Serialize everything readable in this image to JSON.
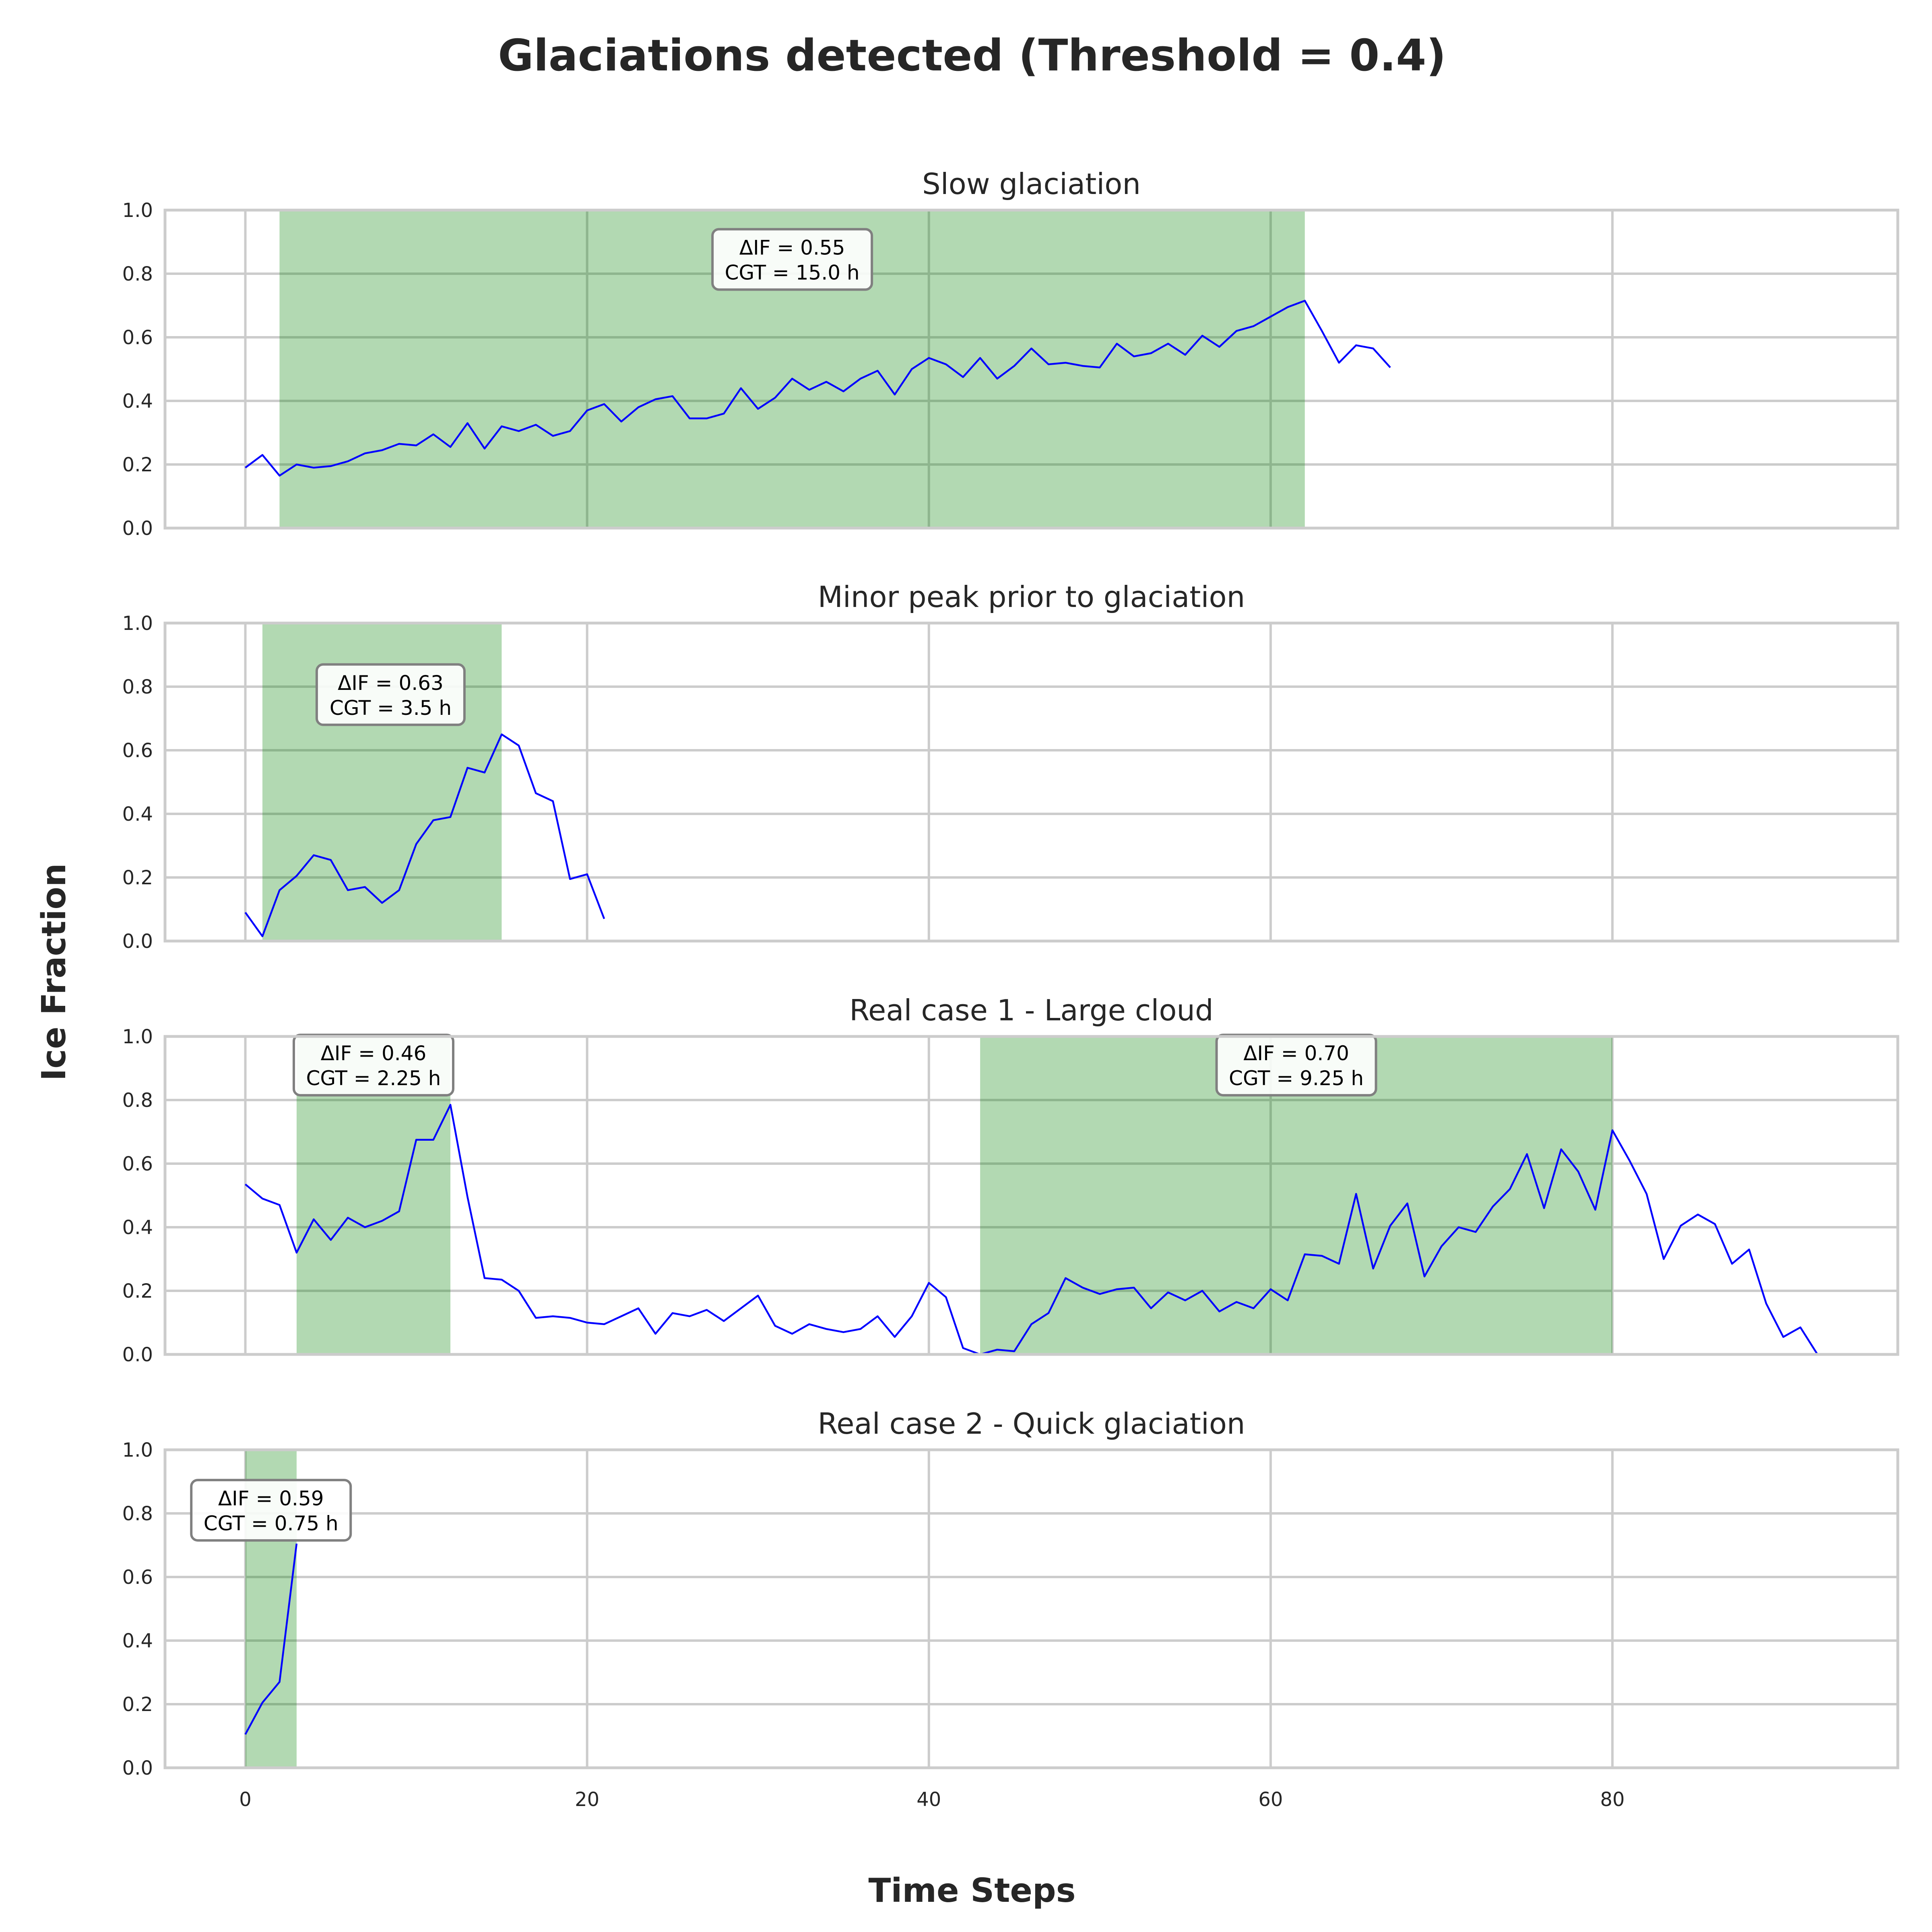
{
  "figure": {
    "title": "Glaciations detected (Threshold = 0.4)",
    "xlabel": "Time Steps",
    "ylabel": "Ice Fraction"
  },
  "colors": {
    "line": "#0000ff",
    "band": "#008000",
    "grid": "#cccccc",
    "text": "#262626"
  },
  "chart_data": [
    {
      "type": "line",
      "title": "Slow glaciation",
      "xlim": [
        -4.7,
        96.7
      ],
      "ylim": [
        0,
        1
      ],
      "xticks": [
        0,
        20,
        40,
        60,
        80
      ],
      "yticks": [
        0.0,
        0.2,
        0.4,
        0.6,
        0.8,
        1.0
      ],
      "grid": true,
      "series": [
        {
          "x": [
            0,
            1,
            2,
            3,
            4,
            5,
            6,
            7,
            8,
            9,
            10,
            11,
            12,
            13,
            14,
            15,
            16,
            17,
            18,
            19,
            20,
            21,
            22,
            23,
            24,
            25,
            26,
            27,
            28,
            29,
            30,
            31,
            32,
            33,
            34,
            35,
            36,
            37,
            38,
            39,
            40,
            41,
            42,
            43,
            44,
            45,
            46,
            47,
            48,
            49,
            50,
            51,
            52,
            53,
            54,
            55,
            56,
            57,
            58,
            59,
            60,
            61,
            62,
            63,
            64,
            65,
            66,
            67
          ],
          "values": [
            0.19,
            0.23,
            0.165,
            0.2,
            0.19,
            0.195,
            0.21,
            0.235,
            0.245,
            0.265,
            0.26,
            0.295,
            0.255,
            0.33,
            0.25,
            0.32,
            0.305,
            0.325,
            0.29,
            0.305,
            0.37,
            0.39,
            0.335,
            0.38,
            0.405,
            0.415,
            0.345,
            0.345,
            0.36,
            0.44,
            0.375,
            0.41,
            0.47,
            0.435,
            0.46,
            0.43,
            0.47,
            0.495,
            0.42,
            0.5,
            0.535,
            0.515,
            0.475,
            0.535,
            0.47,
            0.51,
            0.565,
            0.515,
            0.52,
            0.51,
            0.505,
            0.58,
            0.54,
            0.55,
            0.58,
            0.545,
            0.605,
            0.57,
            0.62,
            0.635,
            0.665,
            0.695,
            0.715,
            0.62,
            0.52,
            0.575,
            0.565,
            0.505
          ]
        }
      ],
      "glaciations": [
        {
          "start": 2,
          "end": 62,
          "label_x": 32,
          "label_y": 0.845,
          "delta_if": "ΔIF = 0.55",
          "cgt": "CGT = 15.0 h"
        }
      ]
    },
    {
      "type": "line",
      "title": "Minor peak prior to glaciation",
      "xlim": [
        -4.7,
        96.7
      ],
      "ylim": [
        0,
        1
      ],
      "xticks": [
        0,
        20,
        40,
        60,
        80
      ],
      "yticks": [
        0.0,
        0.2,
        0.4,
        0.6,
        0.8,
        1.0
      ],
      "grid": true,
      "series": [
        {
          "x": [
            0,
            1,
            2,
            3,
            4,
            5,
            6,
            7,
            8,
            9,
            10,
            11,
            12,
            13,
            14,
            15,
            16,
            17,
            18,
            19,
            20,
            21
          ],
          "values": [
            0.09,
            0.015,
            0.16,
            0.205,
            0.27,
            0.255,
            0.16,
            0.17,
            0.12,
            0.16,
            0.305,
            0.38,
            0.39,
            0.545,
            0.53,
            0.65,
            0.615,
            0.465,
            0.44,
            0.195,
            0.21,
            0.07
          ]
        }
      ],
      "glaciations": [
        {
          "start": 1,
          "end": 15,
          "label_x": 8.5,
          "label_y": 0.775,
          "delta_if": "ΔIF = 0.63",
          "cgt": "CGT = 3.5 h"
        }
      ]
    },
    {
      "type": "line",
      "title": "Real case 1 - Large cloud",
      "xlim": [
        -4.7,
        96.7
      ],
      "ylim": [
        0,
        1
      ],
      "xticks": [
        0,
        20,
        40,
        60,
        80
      ],
      "yticks": [
        0.0,
        0.2,
        0.4,
        0.6,
        0.8,
        1.0
      ],
      "grid": true,
      "series": [
        {
          "x": [
            0,
            1,
            2,
            3,
            4,
            5,
            6,
            7,
            8,
            9,
            10,
            11,
            12,
            13,
            14,
            15,
            16,
            17,
            18,
            19,
            20,
            21,
            22,
            23,
            24,
            25,
            26,
            27,
            28,
            29,
            30,
            31,
            32,
            33,
            34,
            35,
            36,
            37,
            38,
            39,
            40,
            41,
            42,
            43,
            44,
            45,
            46,
            47,
            48,
            49,
            50,
            51,
            52,
            53,
            54,
            55,
            56,
            57,
            58,
            59,
            60,
            61,
            62,
            63,
            64,
            65,
            66,
            67,
            68,
            69,
            70,
            71,
            72,
            73,
            74,
            75,
            76,
            77,
            78,
            79,
            80,
            81,
            82,
            83,
            84,
            85,
            86,
            87,
            88,
            89,
            90,
            91,
            92
          ],
          "values": [
            0.535,
            0.49,
            0.47,
            0.32,
            0.425,
            0.36,
            0.43,
            0.4,
            0.42,
            0.45,
            0.675,
            0.675,
            0.785,
            0.495,
            0.24,
            0.235,
            0.2,
            0.115,
            0.12,
            0.115,
            0.1,
            0.095,
            0.12,
            0.145,
            0.065,
            0.13,
            0.12,
            0.14,
            0.105,
            0.145,
            0.185,
            0.09,
            0.065,
            0.095,
            0.08,
            0.07,
            0.08,
            0.12,
            0.055,
            0.12,
            0.225,
            0.18,
            0.02,
            0.0,
            0.015,
            0.01,
            0.095,
            0.13,
            0.24,
            0.21,
            0.19,
            0.205,
            0.21,
            0.145,
            0.195,
            0.17,
            0.2,
            0.135,
            0.165,
            0.145,
            0.205,
            0.17,
            0.315,
            0.31,
            0.285,
            0.505,
            0.27,
            0.405,
            0.475,
            0.245,
            0.34,
            0.4,
            0.385,
            0.465,
            0.52,
            0.63,
            0.46,
            0.645,
            0.575,
            0.455,
            0.705,
            0.61,
            0.505,
            0.3,
            0.405,
            0.44,
            0.41,
            0.285,
            0.33,
            0.16,
            0.055,
            0.085,
            0.0
          ]
        }
      ],
      "glaciations": [
        {
          "start": 3,
          "end": 12,
          "label_x": 7.5,
          "label_y": 0.91,
          "delta_if": "ΔIF = 0.46",
          "cgt": "CGT = 2.25 h"
        },
        {
          "start": 43,
          "end": 80,
          "label_x": 61.5,
          "label_y": 0.91,
          "delta_if": "ΔIF = 0.70",
          "cgt": "CGT = 9.25 h"
        }
      ]
    },
    {
      "type": "line",
      "title": "Real case 2 - Quick glaciation",
      "xlim": [
        -4.7,
        96.7
      ],
      "ylim": [
        0,
        1
      ],
      "xticks": [
        0,
        20,
        40,
        60,
        80
      ],
      "yticks": [
        0.0,
        0.2,
        0.4,
        0.6,
        0.8,
        1.0
      ],
      "grid": true,
      "series": [
        {
          "x": [
            0,
            1,
            2,
            3
          ],
          "values": [
            0.105,
            0.205,
            0.27,
            0.705
          ]
        }
      ],
      "glaciations": [
        {
          "start": 0,
          "end": 3,
          "label_x": 1.5,
          "label_y": 0.81,
          "delta_if": "ΔIF = 0.59",
          "cgt": "CGT = 0.75 h"
        }
      ]
    }
  ]
}
